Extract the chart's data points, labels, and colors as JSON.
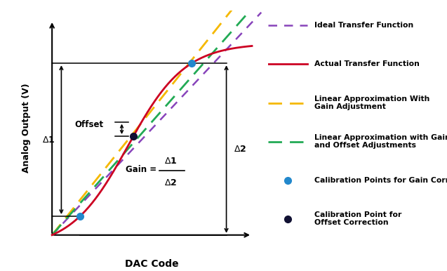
{
  "bg_color": "#ffffff",
  "actual_color": "#cc0022",
  "ideal_color": "#8844bb",
  "gain_adj_color": "#f5b800",
  "gain_offset_color": "#22aa55",
  "calib_gain_color": "#2288cc",
  "calib_offset_color": "#111133",
  "legend_labels": [
    "Ideal Transfer Function",
    "Actual Transfer Function",
    "Linear Approximation With\nGain Adjustment",
    "Linear Approximation with Gain\nand Offset Adjustments",
    "Calibration Points for Gain Correction",
    "Calibration Point for\nOffset Correction"
  ],
  "xlabel": "DAC Code",
  "ylabel": "Analog Output (V)"
}
